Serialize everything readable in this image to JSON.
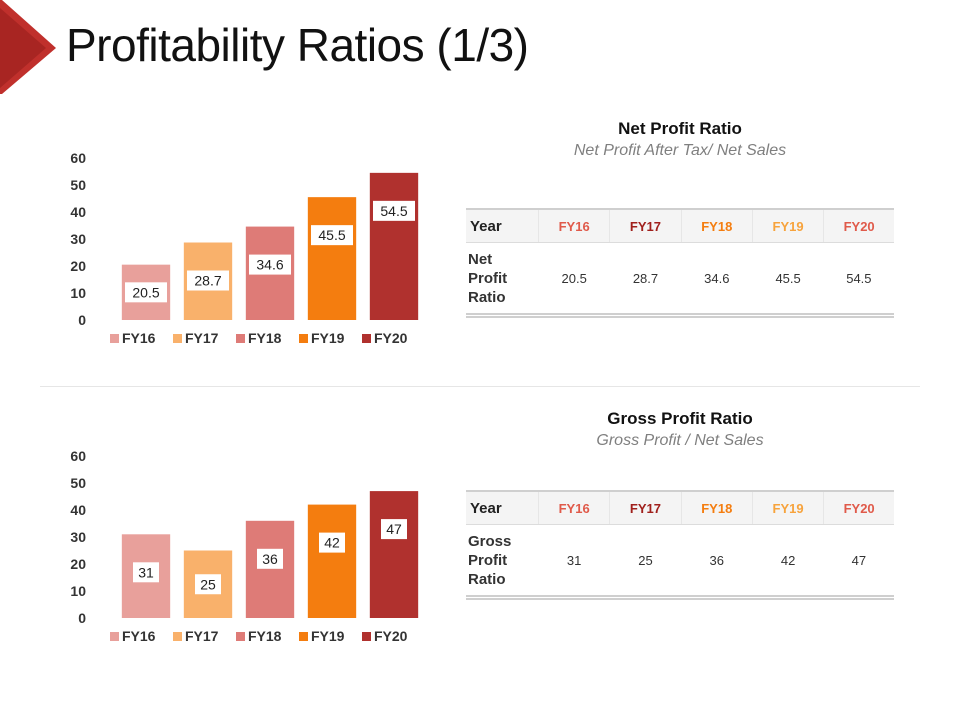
{
  "page": {
    "title": "Profitability Ratios (1/3)",
    "accent": "#c0302c"
  },
  "colors": {
    "FY16": "#e8a09b",
    "FY17": "#f9b16b",
    "FY18": "#de7b77",
    "FY19": "#f47d0f",
    "FY20": "#b0312e"
  },
  "header_colors": {
    "FY16": "#e05a4a",
    "FY17": "#a0201c",
    "FY18": "#f47d0f",
    "FY19": "#f7a33c",
    "FY20": "#e05a4a"
  },
  "panels": [
    {
      "title": "Net Profit Ratio",
      "subtitle": "Net Profit After Tax/ Net Sales",
      "table": {
        "header": "Year",
        "columns": [
          "FY16",
          "FY17",
          "FY18",
          "FY19",
          "FY20"
        ],
        "row_label": "Net Profit Ratio",
        "values": [
          "20.5",
          "28.7",
          "34.6",
          "45.5",
          "54.5"
        ]
      }
    },
    {
      "title": "Gross Profit Ratio",
      "subtitle": "Gross Profit / Net Sales",
      "table": {
        "header": "Year",
        "columns": [
          "FY16",
          "FY17",
          "FY18",
          "FY19",
          "FY20"
        ],
        "row_label": "Gross Profit Ratio",
        "values": [
          "31",
          "25",
          "36",
          "42",
          "47"
        ]
      }
    }
  ],
  "chart_data": [
    {
      "type": "bar",
      "title": "",
      "xlabel": "",
      "ylabel": "",
      "ylim": [
        0,
        60
      ],
      "yticks": [
        0,
        10,
        20,
        30,
        40,
        50,
        60
      ],
      "grid": false,
      "legend_position": "bottom",
      "categories": [
        "FY16",
        "FY17",
        "FY18",
        "FY19",
        "FY20"
      ],
      "values": [
        20.5,
        28.7,
        34.6,
        45.5,
        54.5
      ],
      "labels": [
        "20.5",
        "28.7",
        "34.6",
        "45.5",
        "54.5"
      ]
    },
    {
      "type": "bar",
      "title": "",
      "xlabel": "",
      "ylabel": "",
      "ylim": [
        0,
        60
      ],
      "yticks": [
        0,
        10,
        20,
        30,
        40,
        50,
        60
      ],
      "grid": false,
      "legend_position": "bottom",
      "categories": [
        "FY16",
        "FY17",
        "FY18",
        "FY19",
        "FY20"
      ],
      "values": [
        31,
        25,
        36,
        42,
        47
      ],
      "labels": [
        "31",
        "25",
        "36",
        "42",
        "47"
      ]
    }
  ]
}
